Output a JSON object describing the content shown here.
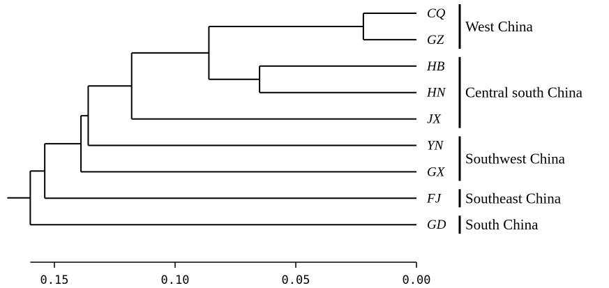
{
  "tree": {
    "leaves": [
      {
        "id": "CQ",
        "label": "CQ"
      },
      {
        "id": "GZ",
        "label": "GZ"
      },
      {
        "id": "HB",
        "label": "HB"
      },
      {
        "id": "HN",
        "label": "HN"
      },
      {
        "id": "JX",
        "label": "JX"
      },
      {
        "id": "YN",
        "label": "YN"
      },
      {
        "id": "GX",
        "label": "GX"
      },
      {
        "id": "FJ",
        "label": "FJ"
      },
      {
        "id": "GD",
        "label": "GD"
      }
    ],
    "root_height": 0.16,
    "nodes": [
      {
        "id": "n_cq_gz",
        "height": 0.022,
        "children": [
          "CQ",
          "GZ"
        ]
      },
      {
        "id": "n_hb_hn",
        "height": 0.065,
        "children": [
          "HB",
          "HN"
        ]
      },
      {
        "id": "n_west_cent",
        "height": 0.086,
        "children": [
          "n_cq_gz",
          "n_hb_hn"
        ]
      },
      {
        "id": "n_plus_jx",
        "height": 0.118,
        "children": [
          "n_west_cent",
          "JX"
        ]
      },
      {
        "id": "n_plus_yn",
        "height": 0.136,
        "children": [
          "n_plus_jx",
          "YN"
        ]
      },
      {
        "id": "n_plus_gx",
        "height": 0.139,
        "children": [
          "n_plus_yn",
          "GX"
        ]
      },
      {
        "id": "n_plus_fj",
        "height": 0.154,
        "children": [
          "n_plus_gx",
          "FJ"
        ]
      },
      {
        "id": "n_root",
        "height": 0.16,
        "children": [
          "n_plus_fj",
          "GD"
        ]
      }
    ]
  },
  "groups": [
    {
      "label": "West China",
      "from": "CQ",
      "to": "GZ"
    },
    {
      "label": "Central south China",
      "from": "HB",
      "to": "JX"
    },
    {
      "label": "Southwest China",
      "from": "YN",
      "to": "GX"
    },
    {
      "label": "Southeast China",
      "from": "FJ",
      "to": "FJ"
    },
    {
      "label": "South China",
      "from": "GD",
      "to": "GD"
    }
  ],
  "axis": {
    "ticks": [
      {
        "value": 0.15,
        "label": "0.15"
      },
      {
        "value": 0.1,
        "label": "0.10"
      },
      {
        "value": 0.05,
        "label": "0.05"
      },
      {
        "value": 0.0,
        "label": "0.00"
      }
    ],
    "min": 0.0,
    "max": 0.16,
    "direction": "reversed"
  }
}
